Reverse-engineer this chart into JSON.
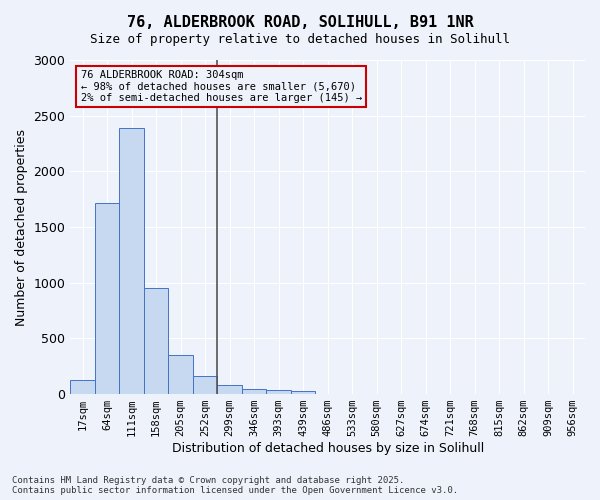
{
  "title_line1": "76, ALDERBROOK ROAD, SOLIHULL, B91 1NR",
  "title_line2": "Size of property relative to detached houses in Solihull",
  "xlabel": "Distribution of detached houses by size in Solihull",
  "ylabel": "Number of detached properties",
  "categories": [
    "17sqm",
    "64sqm",
    "111sqm",
    "158sqm",
    "205sqm",
    "252sqm",
    "299sqm",
    "346sqm",
    "393sqm",
    "439sqm",
    "486sqm",
    "533sqm",
    "580sqm",
    "627sqm",
    "674sqm",
    "721sqm",
    "768sqm",
    "815sqm",
    "862sqm",
    "909sqm",
    "956sqm"
  ],
  "values": [
    130,
    1720,
    2390,
    950,
    350,
    160,
    80,
    50,
    40,
    30,
    0,
    0,
    0,
    0,
    0,
    0,
    0,
    0,
    0,
    0,
    0
  ],
  "bar_color": "#c6d9f0",
  "bar_edge_color": "#4472c4",
  "vline_x": 5.5,
  "vline_color": "#555555",
  "annotation_title": "76 ALDERBROOK ROAD: 304sqm",
  "annotation_line2": "← 98% of detached houses are smaller (5,670)",
  "annotation_line3": "2% of semi-detached houses are larger (145) →",
  "annotation_box_color": "#cc0000",
  "ylim": [
    0,
    3000
  ],
  "yticks": [
    0,
    500,
    1000,
    1500,
    2000,
    2500,
    3000
  ],
  "bg_color": "#eef3fb",
  "grid_color": "#ffffff",
  "footer_line1": "Contains HM Land Registry data © Crown copyright and database right 2025.",
  "footer_line2": "Contains public sector information licensed under the Open Government Licence v3.0."
}
